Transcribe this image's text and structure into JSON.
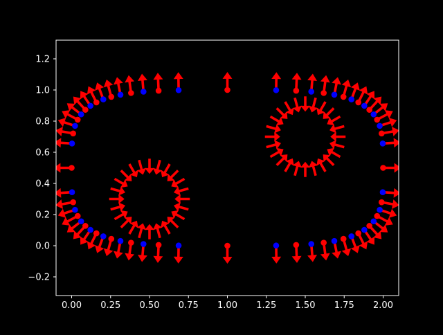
{
  "chart_data": {
    "type": "quiver",
    "title": "",
    "xlabel": "",
    "ylabel": "",
    "xlim": [
      -0.1,
      2.1
    ],
    "ylim": [
      -0.32,
      1.32
    ],
    "xticks": [
      0.0,
      0.25,
      0.5,
      0.75,
      1.0,
      1.25,
      1.5,
      1.75,
      2.0
    ],
    "xtick_labels": [
      "0.00",
      "0.25",
      "0.50",
      "0.75",
      "1.00",
      "1.25",
      "1.50",
      "1.75",
      "2.00"
    ],
    "yticks": [
      -0.2,
      0.0,
      0.2,
      0.4,
      0.6,
      0.8,
      1.0,
      1.2
    ],
    "ytick_labels": [
      "−0.2",
      "0.0",
      "0.2",
      "0.4",
      "0.6",
      "0.8",
      "1.0",
      "1.2"
    ],
    "grid": false,
    "background": "#000000",
    "colors": {
      "arrow": "#ff0000",
      "node_a": "#ff0000",
      "node_b": "#0000ff",
      "axes": "#ffffff"
    },
    "boundaries": [
      {
        "name": "outer",
        "kind": "stadium",
        "x_straight": [
          0.58,
          1.42
        ],
        "center_y": 0.5,
        "radius_x": 0.58,
        "radius_y": 0.5,
        "points": 64,
        "normals": "outward",
        "alternating_markers": true
      },
      {
        "name": "inner-left",
        "kind": "circle",
        "center": [
          0.5,
          0.3
        ],
        "radius": 0.17,
        "points": 24,
        "normals": "inward",
        "alternating_markers": false
      },
      {
        "name": "inner-right",
        "kind": "circle",
        "center": [
          1.5,
          0.7
        ],
        "radius": 0.17,
        "points": 24,
        "normals": "inward",
        "alternating_markers": false
      }
    ]
  }
}
